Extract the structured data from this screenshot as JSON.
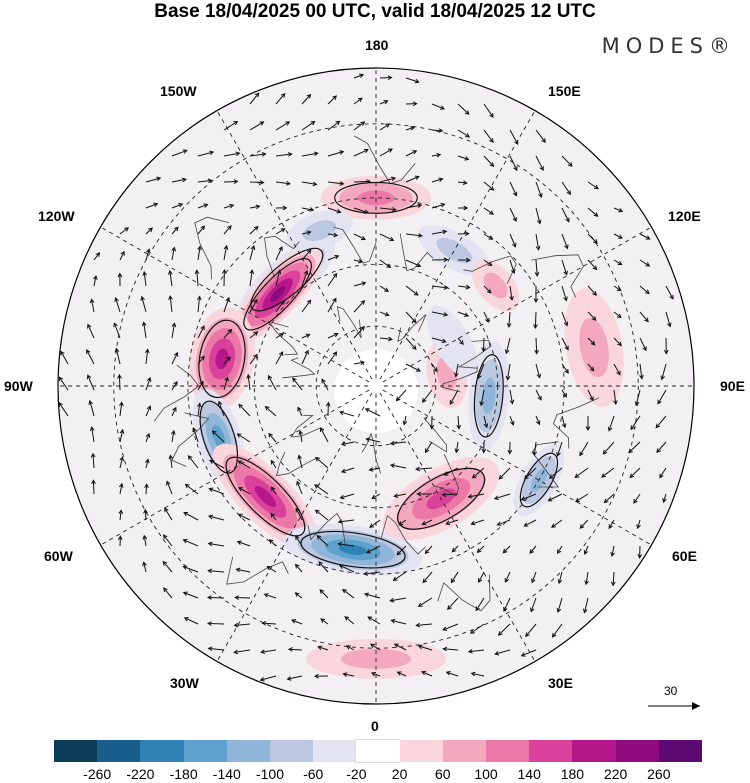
{
  "header": {
    "title": "Base 18/04/2025 00 UTC, valid 18/04/2025 12 UTC",
    "brand": "MODES®"
  },
  "longitude_labels": {
    "top": "180",
    "bottom": "0",
    "left": "90W",
    "right": "90E",
    "upper_left_1": "150W",
    "upper_left_2": "120W",
    "lower_left_1": "60W",
    "lower_left_2": "30W",
    "upper_right_1": "150E",
    "upper_right_2": "120E",
    "lower_right_1": "60E",
    "lower_right_2": "30E"
  },
  "reference_vector": {
    "label": "30"
  },
  "colorbar": {
    "colors": [
      "#0d3b5a",
      "#185f8c",
      "#2f82b5",
      "#5ea1cd",
      "#8fb6d8",
      "#bcc7e2",
      "#e3e3f1",
      "#ffffff",
      "#f9d5dc",
      "#f4a8bf",
      "#ec78a8",
      "#d9419a",
      "#b5168a",
      "#8e0a7e",
      "#5c0a72"
    ],
    "labels": [
      "-260",
      "-220",
      "-180",
      "-140",
      "-100",
      "-60",
      "-20",
      "20",
      "60",
      "100",
      "140",
      "180",
      "220",
      "260"
    ]
  },
  "anomaly_blobs": [
    {
      "lon": -140,
      "lat": 56,
      "value": -200,
      "a": 60,
      "b": 22
    },
    {
      "lon": -133,
      "lat": 57,
      "value": 220,
      "a": 62,
      "b": 22
    },
    {
      "lon": -100,
      "lat": 52,
      "value": 200,
      "a": 52,
      "b": 32
    },
    {
      "lon": -72,
      "lat": 50,
      "value": -160,
      "a": 50,
      "b": 22
    },
    {
      "lon": -45,
      "lat": 52,
      "value": 200,
      "a": 70,
      "b": 26
    },
    {
      "lon": -8,
      "lat": 50,
      "value": -180,
      "a": 70,
      "b": 24
    },
    {
      "lon": 30,
      "lat": 58,
      "value": 160,
      "a": 65,
      "b": 30
    },
    {
      "lon": 60,
      "lat": 45,
      "value": -100,
      "a": 40,
      "b": 18
    },
    {
      "lon": 85,
      "lat": 62,
      "value": -120,
      "a": 55,
      "b": 20
    },
    {
      "lon": 100,
      "lat": 38,
      "value": 60,
      "a": 60,
      "b": 28
    },
    {
      "lon": 180,
      "lat": 45,
      "value": 100,
      "a": 55,
      "b": 22
    },
    {
      "lon": 150,
      "lat": 52,
      "value": -60,
      "a": 40,
      "b": 18
    },
    {
      "lon": -160,
      "lat": 50,
      "value": -60,
      "a": 35,
      "b": 18
    },
    {
      "lon": 100,
      "lat": 72,
      "value": 60,
      "a": 35,
      "b": 20
    },
    {
      "lon": 130,
      "lat": 52,
      "value": 60,
      "a": 30,
      "b": 18
    },
    {
      "lon": 0,
      "lat": 28,
      "value": 60,
      "a": 70,
      "b": 20
    },
    {
      "lon": 120,
      "lat": 68,
      "value": -40,
      "a": 40,
      "b": 18
    }
  ]
}
